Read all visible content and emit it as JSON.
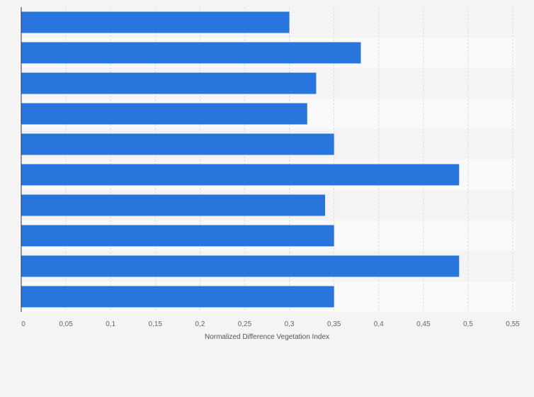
{
  "chart_data": {
    "type": "bar",
    "orientation": "horizontal",
    "categories": [
      "",
      "",
      "",
      "",
      "",
      "",
      "",
      "",
      "",
      ""
    ],
    "values": [
      0.3,
      0.38,
      0.33,
      0.32,
      0.35,
      0.49,
      0.34,
      0.35,
      0.49,
      0.35
    ],
    "title": "",
    "xlabel": "Normalized Difference Vegetation Index",
    "ylabel": "",
    "xlim": [
      0,
      0.55
    ],
    "x_ticks": [
      0,
      0.05,
      0.1,
      0.15,
      0.2,
      0.25,
      0.3,
      0.35,
      0.4,
      0.45,
      0.5,
      0.55
    ],
    "x_tick_labels": [
      "0",
      "0,05",
      "0,1",
      "0,15",
      "0,2",
      "0,25",
      "0,3",
      "0,35",
      "0,4",
      "0,45",
      "0,5",
      "0,55"
    ],
    "grid": true,
    "legend": "none",
    "bar_color": "#2876dd",
    "band_colors": [
      "#f4f4f4",
      "#f9f9f9"
    ],
    "gridline_color": "#dddddd",
    "axis_color": "#333333"
  }
}
